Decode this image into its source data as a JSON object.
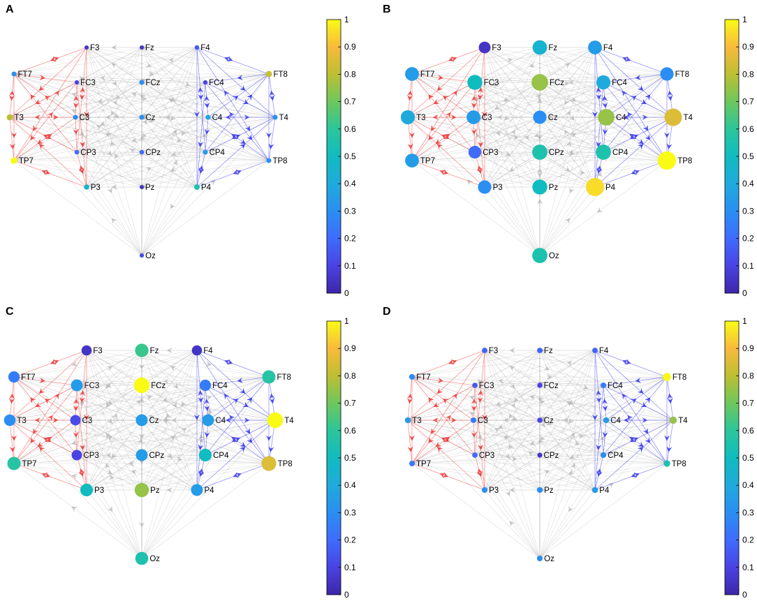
{
  "figure": {
    "colorbar_ticks": [
      "0",
      "0.1",
      "0.2",
      "0.3",
      "0.4",
      "0.5",
      "0.6",
      "0.7",
      "0.8",
      "0.9",
      "1"
    ],
    "colormap": [
      "#3e26a8",
      "#4a43e3",
      "#3f6cfd",
      "#2a8ef2",
      "#1faadc",
      "#10bcc0",
      "#2bc69b",
      "#6ec75c",
      "#bdbf33",
      "#f8ba3c",
      "#f9fb15"
    ],
    "edge_colors": {
      "left": "#ee3a3a",
      "right": "#3a3aee",
      "other": "#b4b4b4"
    }
  },
  "panels": [
    {
      "label": "A",
      "nodes": [
        {
          "id": "F3",
          "value": 0.05
        },
        {
          "id": "Fz",
          "value": 0.05
        },
        {
          "id": "F4",
          "value": 0.15
        },
        {
          "id": "FT7",
          "value": 0.3
        },
        {
          "id": "FC3",
          "value": 0.1
        },
        {
          "id": "FCz",
          "value": 0.3
        },
        {
          "id": "FC4",
          "value": 0.1
        },
        {
          "id": "FT8",
          "value": 0.82
        },
        {
          "id": "T3",
          "value": 0.8
        },
        {
          "id": "C3",
          "value": 0.3
        },
        {
          "id": "Cz",
          "value": 0.3
        },
        {
          "id": "C4",
          "value": 0.38
        },
        {
          "id": "T4",
          "value": 0.3
        },
        {
          "id": "CP3",
          "value": 0.2
        },
        {
          "id": "CPz",
          "value": 0.2
        },
        {
          "id": "CP4",
          "value": 0.35
        },
        {
          "id": "TP7",
          "value": 1.0
        },
        {
          "id": "TP8",
          "value": 0.3
        },
        {
          "id": "P3",
          "value": 0.45
        },
        {
          "id": "Pz",
          "value": 0.05
        },
        {
          "id": "P4",
          "value": 0.55
        },
        {
          "id": "Oz",
          "value": 0.12
        }
      ]
    },
    {
      "label": "B",
      "nodes": [
        {
          "id": "F3",
          "value": 0.05
        },
        {
          "id": "Fz",
          "value": 0.45
        },
        {
          "id": "F4",
          "value": 0.35
        },
        {
          "id": "FT7",
          "value": 0.35
        },
        {
          "id": "FC3",
          "value": 0.5
        },
        {
          "id": "FCz",
          "value": 0.75
        },
        {
          "id": "FC4",
          "value": 0.4
        },
        {
          "id": "FT8",
          "value": 0.3
        },
        {
          "id": "T3",
          "value": 0.4
        },
        {
          "id": "C3",
          "value": 0.35
        },
        {
          "id": "Cz",
          "value": 0.3
        },
        {
          "id": "C4",
          "value": 0.75
        },
        {
          "id": "T4",
          "value": 0.85
        },
        {
          "id": "CP3",
          "value": 0.2
        },
        {
          "id": "CPz",
          "value": 0.55
        },
        {
          "id": "CP4",
          "value": 0.55
        },
        {
          "id": "TP7",
          "value": 0.35
        },
        {
          "id": "TP8",
          "value": 1.0
        },
        {
          "id": "P3",
          "value": 0.3
        },
        {
          "id": "Pz",
          "value": 0.5
        },
        {
          "id": "P4",
          "value": 0.95
        },
        {
          "id": "Oz",
          "value": 0.55
        }
      ]
    },
    {
      "label": "C",
      "nodes": [
        {
          "id": "F3",
          "value": 0.05
        },
        {
          "id": "Fz",
          "value": 0.62
        },
        {
          "id": "F4",
          "value": 0.05
        },
        {
          "id": "FT7",
          "value": 0.25
        },
        {
          "id": "FC3",
          "value": 0.35
        },
        {
          "id": "FCz",
          "value": 1.0
        },
        {
          "id": "FC4",
          "value": 0.25
        },
        {
          "id": "FT8",
          "value": 0.58
        },
        {
          "id": "T3",
          "value": 0.3
        },
        {
          "id": "C3",
          "value": 0.12
        },
        {
          "id": "Cz",
          "value": 0.35
        },
        {
          "id": "C4",
          "value": 0.35
        },
        {
          "id": "T4",
          "value": 1.0
        },
        {
          "id": "CP3",
          "value": 0.1
        },
        {
          "id": "CPz",
          "value": 0.35
        },
        {
          "id": "CP4",
          "value": 0.5
        },
        {
          "id": "TP7",
          "value": 0.58
        },
        {
          "id": "TP8",
          "value": 0.85
        },
        {
          "id": "P3",
          "value": 0.5
        },
        {
          "id": "Pz",
          "value": 0.75
        },
        {
          "id": "P4",
          "value": 0.35
        },
        {
          "id": "Oz",
          "value": 0.55
        }
      ]
    },
    {
      "label": "D",
      "nodes": [
        {
          "id": "F3",
          "value": 0.18
        },
        {
          "id": "Fz",
          "value": 0.18
        },
        {
          "id": "F4",
          "value": 0.18
        },
        {
          "id": "FT7",
          "value": 0.3
        },
        {
          "id": "FC3",
          "value": 0.15
        },
        {
          "id": "FCz",
          "value": 0.1
        },
        {
          "id": "FC4",
          "value": 0.25
        },
        {
          "id": "FT8",
          "value": 1.0
        },
        {
          "id": "T3",
          "value": 0.35
        },
        {
          "id": "C3",
          "value": 0.25
        },
        {
          "id": "Cz",
          "value": 0.1
        },
        {
          "id": "C4",
          "value": 0.35
        },
        {
          "id": "T4",
          "value": 0.75
        },
        {
          "id": "CP3",
          "value": 0.2
        },
        {
          "id": "CPz",
          "value": 0.05
        },
        {
          "id": "CP4",
          "value": 0.3
        },
        {
          "id": "TP7",
          "value": 0.25
        },
        {
          "id": "TP8",
          "value": 0.55
        },
        {
          "id": "P3",
          "value": 0.3
        },
        {
          "id": "Pz",
          "value": 0.3
        },
        {
          "id": "P4",
          "value": 0.35
        },
        {
          "id": "Oz",
          "value": 0.3
        }
      ]
    }
  ]
}
